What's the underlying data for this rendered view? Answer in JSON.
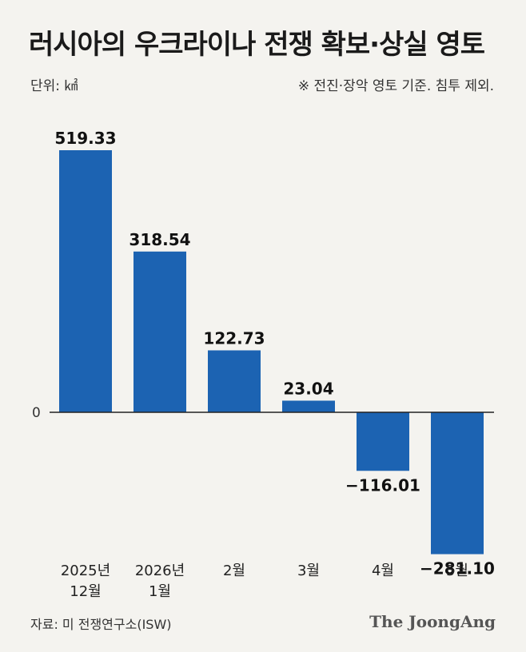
{
  "header": {
    "title": "러시아의 우크라이나 전쟁 확보·상실 영토",
    "unit": "단위: ㎢",
    "note": "※ 전진·장악 영토 기준. 침투 제외."
  },
  "footer": {
    "source": "자료: 미 전쟁연구소(ISW)",
    "brand": "The JoongAng"
  },
  "colors": {
    "bar": "#1c63b2",
    "axis": "#222222",
    "background": "#f4f3ef"
  },
  "chart_data": {
    "type": "bar",
    "title": "러시아의 우크라이나 전쟁 확보·상실 영토",
    "categories": [
      [
        "2025년",
        "12월"
      ],
      [
        "2026년",
        "1월"
      ],
      [
        "2월"
      ],
      [
        "3월"
      ],
      [
        "4월"
      ],
      [
        "5월"
      ]
    ],
    "values": [
      519.33,
      318.54,
      122.73,
      23.04,
      -116.01,
      -281.1
    ],
    "value_labels": [
      "519.33",
      "318.54",
      "122.73",
      "23.04",
      "−116.01",
      "−281.10"
    ],
    "zero_label": "0",
    "xlabel": "",
    "ylabel": "단위: ㎢"
  }
}
